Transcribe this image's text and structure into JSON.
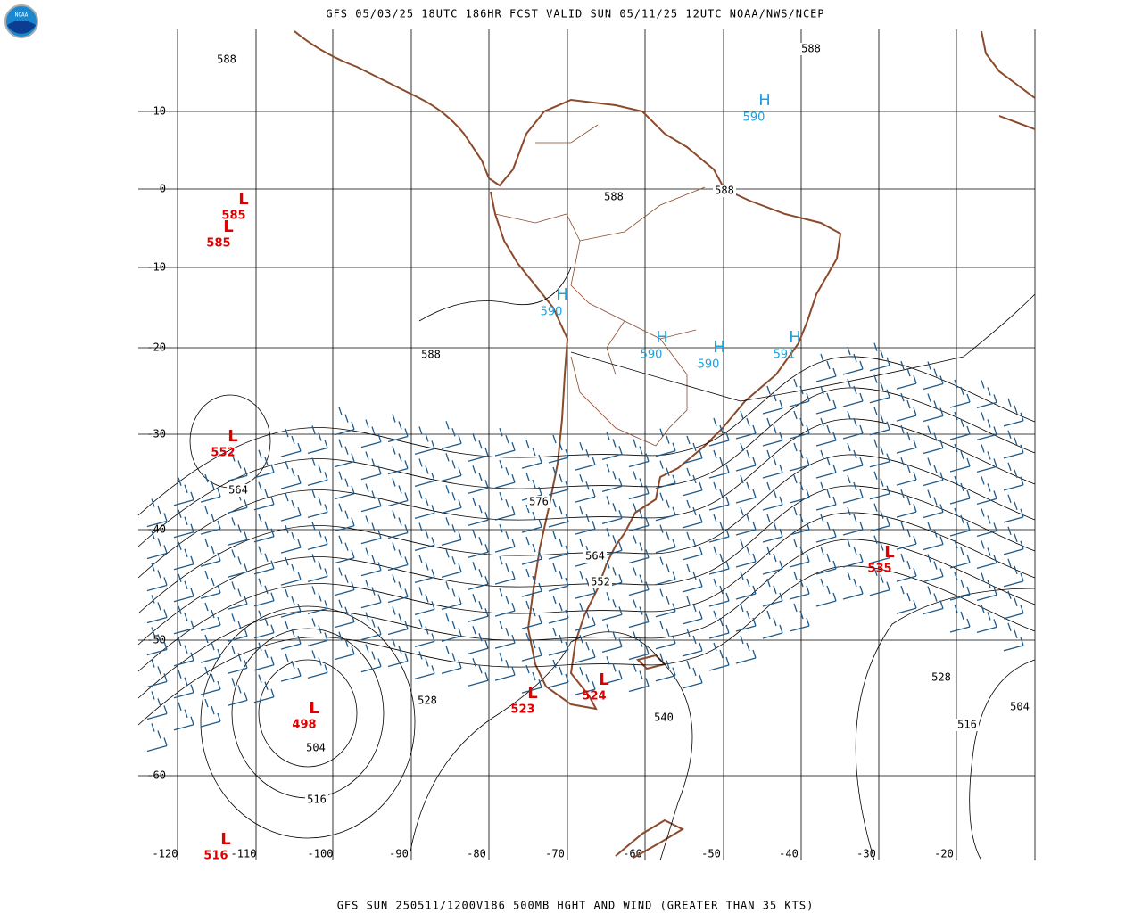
{
  "header": {
    "title": "GFS 05/03/25 18UTC 186HR FCST VALID SUN 05/11/25 12UTC NOAA/NWS/NCEP",
    "logo_text": "NOAA"
  },
  "axes": {
    "lat_labels": [
      "10",
      "0",
      "-10",
      "-20",
      "-30",
      "-40",
      "-50",
      "-60"
    ],
    "lon_labels": [
      "-120",
      "-110",
      "-100",
      "-90",
      "-80",
      "-70",
      "-60",
      "-50",
      "-40",
      "-30",
      "-20"
    ]
  },
  "lows": [
    {
      "symbol": "L",
      "value": "585"
    },
    {
      "symbol": "L",
      "value": "585"
    },
    {
      "symbol": "L",
      "value": "552"
    },
    {
      "symbol": "L",
      "value": "498"
    },
    {
      "symbol": "L",
      "value": "523"
    },
    {
      "symbol": "L",
      "value": "524"
    },
    {
      "symbol": "L",
      "value": "535"
    },
    {
      "symbol": "L",
      "value": "516"
    }
  ],
  "highs": [
    {
      "symbol": "H",
      "value": "590"
    },
    {
      "symbol": "H",
      "value": "590"
    },
    {
      "symbol": "H",
      "value": "590"
    },
    {
      "symbol": "H",
      "value": "590"
    },
    {
      "symbol": "H",
      "value": "591"
    }
  ],
  "contour_labels": [
    "588",
    "588",
    "588",
    "588",
    "588",
    "564",
    "576",
    "564",
    "552",
    "528",
    "540",
    "504",
    "516",
    "528",
    "516",
    "504"
  ],
  "footer": {
    "text": "GFS SUN 250511/1200V186 500MB HGHT AND WIND (GREATER THAN 35 KTS)"
  }
}
